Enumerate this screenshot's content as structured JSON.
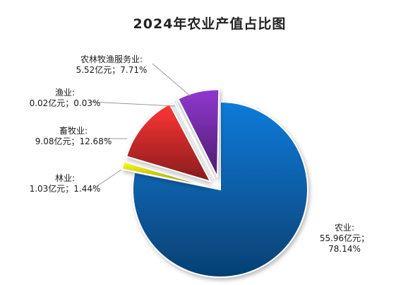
{
  "chart_data": {
    "type": "pie",
    "title": "2024年农业产值占比图",
    "unit": "亿元",
    "slices": [
      {
        "name": "农业",
        "value": 55.96,
        "percent": 78.14,
        "value_text": "55.96亿元；",
        "percent_text": "78.14%",
        "color": "#0a68b8"
      },
      {
        "name": "林业",
        "value": 1.03,
        "percent": 1.44,
        "value_text": "1.03亿元；",
        "percent_text": "1.44%",
        "color": "#e8e81a"
      },
      {
        "name": "畜牧业",
        "value": 9.08,
        "percent": 12.68,
        "value_text": "9.08亿元；",
        "percent_text": "12.68%",
        "color": "#d92d2d"
      },
      {
        "name": "渔业",
        "value": 0.02,
        "percent": 0.03,
        "value_text": "0.02亿元；",
        "percent_text": "0.03%",
        "color": "#3fa2d8"
      },
      {
        "name": "农林牧渔服务业",
        "value": 5.52,
        "percent": 7.71,
        "value_text": "5.52亿元；",
        "percent_text": "7.71%",
        "color": "#7a2fb0"
      }
    ]
  }
}
